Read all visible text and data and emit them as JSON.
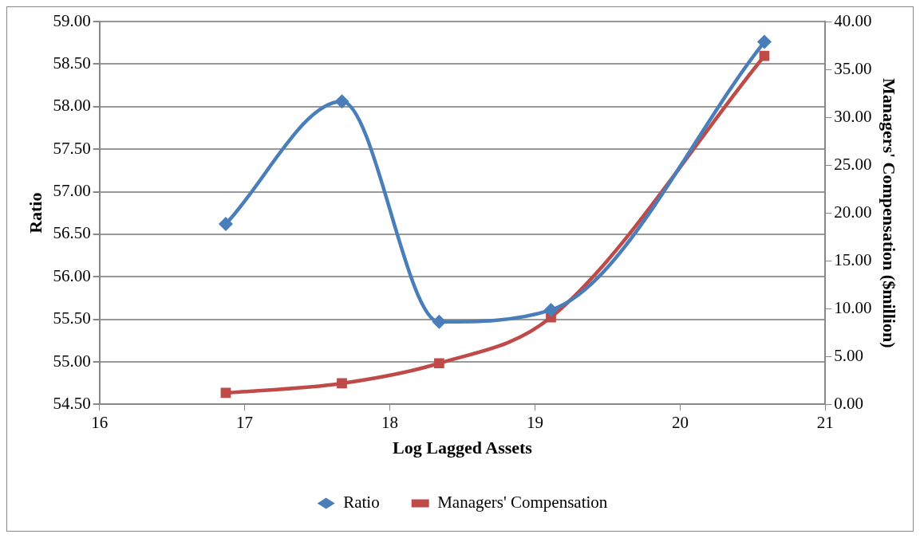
{
  "chart_data": {
    "type": "line",
    "xlabel": "Log Lagged Assets",
    "ylabel": "Ratio",
    "y2label": "Managers' Compensation ($million)",
    "xlim": [
      16,
      21
    ],
    "xticks": [
      16,
      17,
      18,
      19,
      20,
      21
    ],
    "ylim": [
      54.5,
      59
    ],
    "yticks": [
      {
        "value": 54.5,
        "label": "54.50"
      },
      {
        "value": 55,
        "label": "55.00"
      },
      {
        "value": 55.5,
        "label": "55.50"
      },
      {
        "value": 56,
        "label": "56.00"
      },
      {
        "value": 56.5,
        "label": "56.50"
      },
      {
        "value": 57,
        "label": "57.00"
      },
      {
        "value": 57.5,
        "label": "57.50"
      },
      {
        "value": 58,
        "label": "58.00"
      },
      {
        "value": 58.5,
        "label": "58.50"
      },
      {
        "value": 59,
        "label": "59.00"
      }
    ],
    "y2lim": [
      0,
      40
    ],
    "y2ticks": [
      {
        "value": 0,
        "label": "0.00"
      },
      {
        "value": 5,
        "label": "5.00"
      },
      {
        "value": 10,
        "label": "10.00"
      },
      {
        "value": 15,
        "label": "15.00"
      },
      {
        "value": 20,
        "label": "20.00"
      },
      {
        "value": 25,
        "label": "25.00"
      },
      {
        "value": 30,
        "label": "30.00"
      },
      {
        "value": 35,
        "label": "35.00"
      },
      {
        "value": 40,
        "label": "40.00"
      }
    ],
    "grid": "y",
    "legend": "bottom",
    "series": [
      {
        "name": "Ratio",
        "color": "#4a7ebb",
        "marker": "diamond",
        "x": [
          16.87,
          17.67,
          18.34,
          19.11,
          20.58
        ],
        "values": [
          56.62,
          58.06,
          55.47,
          55.61,
          58.76
        ]
      },
      {
        "name": "Managers' Compensation",
        "color": "#be4b48",
        "marker": "square",
        "axis": "y2",
        "x": [
          16.87,
          17.67,
          18.34,
          19.11,
          20.58
        ],
        "values": [
          1.2,
          2.2,
          4.3,
          9.1,
          36.4
        ]
      }
    ]
  }
}
